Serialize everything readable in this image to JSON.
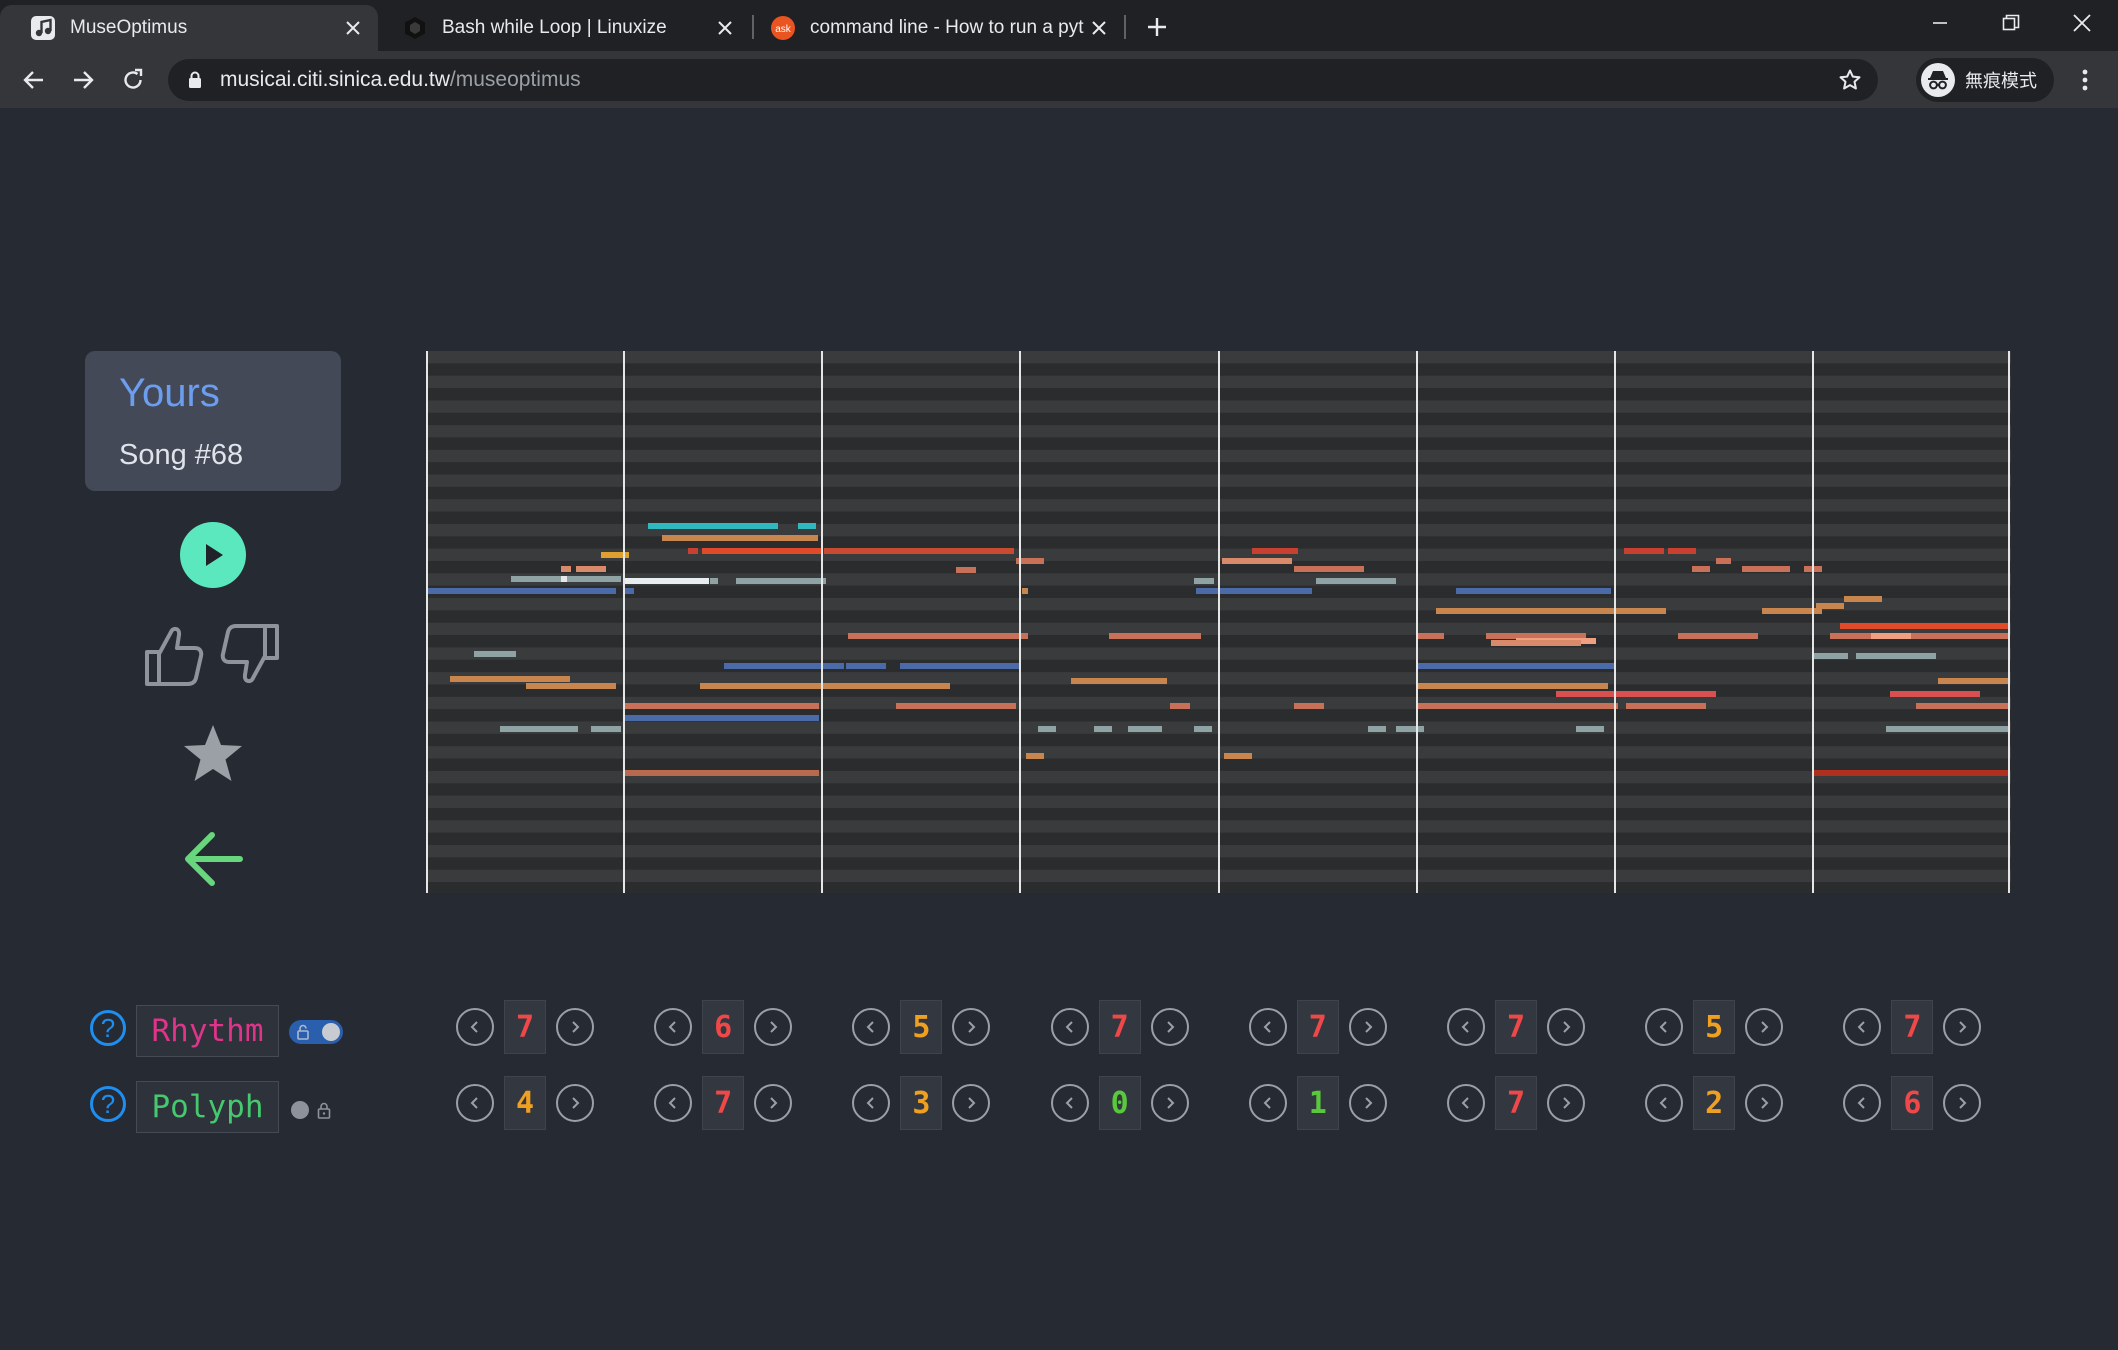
{
  "browser": {
    "tabs": [
      {
        "title": "MuseOptimus",
        "icon": "music-note-icon",
        "active": true
      },
      {
        "title": "Bash while Loop | Linuxize",
        "icon": "linuxize-hexagon-icon",
        "active": false
      },
      {
        "title": "command line - How to run a pyt",
        "icon": "askubuntu-icon",
        "favicon_text": "ask",
        "active": false
      }
    ],
    "url_domain": "musicai.citi.sinica.edu.tw",
    "url_path": "/museoptimus",
    "profile_label": "無痕模式"
  },
  "song": {
    "owner": "Yours",
    "title": "Song #68"
  },
  "controls": {
    "rhythm": {
      "label": "Rhythm",
      "values": [
        "7",
        "6",
        "5",
        "7",
        "7",
        "7",
        "5",
        "7"
      ],
      "locked": false
    },
    "polyph": {
      "label": "Polyph",
      "values": [
        "4",
        "7",
        "3",
        "0",
        "1",
        "7",
        "2",
        "6"
      ],
      "locked": true
    },
    "help_symbol": "?"
  },
  "colors": {
    "background": "#262a33",
    "accent_play": "#5ce8be",
    "title_blue": "#6c9ef0",
    "rhythm_label": "#e0338a",
    "polyph_label": "#46c86e",
    "value_high": "#f04848",
    "value_mid": "#f0a020",
    "value_low": "#5ac83c",
    "help_blue": "#1e8ef0"
  }
}
